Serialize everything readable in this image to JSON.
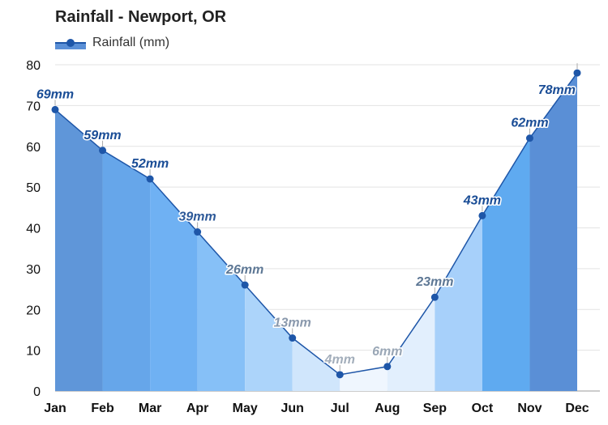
{
  "chart_data": {
    "type": "area",
    "title": "Rainfall - Newport, OR",
    "legend": {
      "label": "Rainfall (mm)",
      "placement": "top-left"
    },
    "categories": [
      "Jan",
      "Feb",
      "Mar",
      "Apr",
      "May",
      "Jun",
      "Jul",
      "Aug",
      "Sep",
      "Oct",
      "Nov",
      "Dec"
    ],
    "series": [
      {
        "name": "Rainfall (mm)",
        "values": [
          69,
          59,
          52,
          39,
          26,
          13,
          4,
          6,
          23,
          43,
          62,
          78
        ],
        "labels": [
          "69mm",
          "59mm",
          "52mm",
          "39mm",
          "26mm",
          "13mm",
          "4mm",
          "6mm",
          "23mm",
          "43mm",
          "62mm",
          "78mm"
        ]
      }
    ],
    "ylim": [
      0,
      80
    ],
    "yticks": [
      "0",
      "10",
      "20",
      "30",
      "40",
      "50",
      "60",
      "70",
      "80"
    ],
    "grid": true,
    "colors": {
      "line": "#1e56a8",
      "month_fills": [
        "#5f96d9",
        "#66a6ea",
        "#6fb1f3",
        "#86c0f7",
        "#acd4fa",
        "#d0e6fc",
        "#eff6fe",
        "#e2effd",
        "#a7d0fa",
        "#5faaf0",
        "#5a8fd6",
        "#4f7ec7"
      ],
      "label_colors": [
        "#1a4d96",
        "#1a4d96",
        "#1a4d96",
        "#2e5a99",
        "#5e7895",
        "#8a99ad",
        "#a3aebb",
        "#9aa7b6",
        "#5e7895",
        "#1a4d96",
        "#1a4d96",
        "#1a4d96"
      ]
    }
  }
}
